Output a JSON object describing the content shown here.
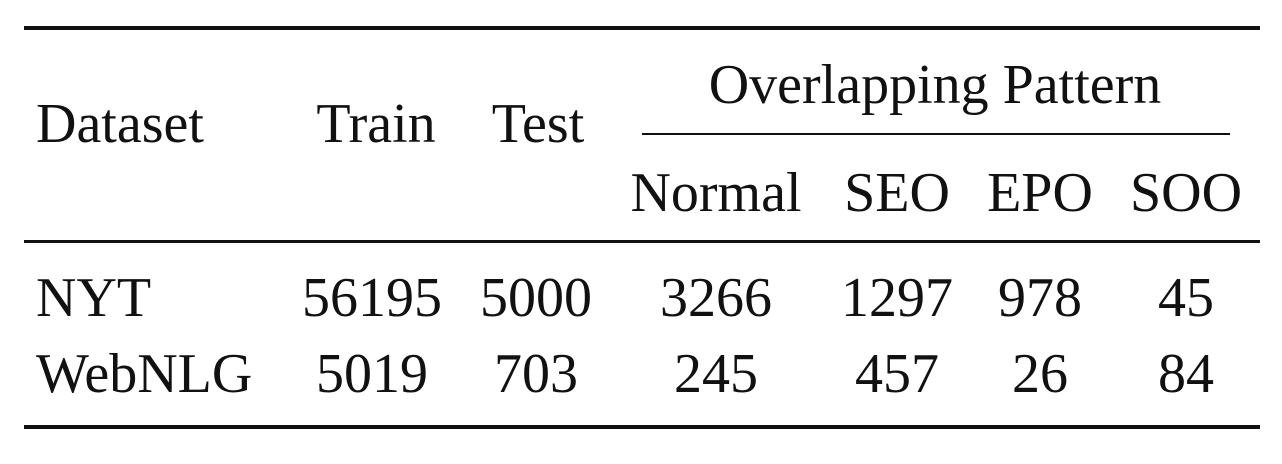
{
  "table": {
    "headers": {
      "dataset": "Dataset",
      "train": "Train",
      "test": "Test",
      "group": "Overlapping Pattern",
      "normal": "Normal",
      "seo": "SEO",
      "epo": "EPO",
      "soo": "SOO"
    },
    "rows": [
      {
        "dataset": "NYT",
        "train": "56195",
        "test": "5000",
        "normal": "3266",
        "seo": "1297",
        "epo": "978",
        "soo": "45"
      },
      {
        "dataset": "WebNLG",
        "train": "5019",
        "test": "703",
        "normal": "245",
        "seo": "457",
        "epo": "26",
        "soo": "84"
      }
    ]
  }
}
